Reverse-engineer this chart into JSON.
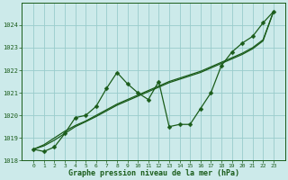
{
  "xlabel": "Graphe pression niveau de la mer (hPa)",
  "bg_color": "#cceaea",
  "grid_color": "#99cccc",
  "line_color": "#1a5c1a",
  "x": [
    0,
    1,
    2,
    3,
    4,
    5,
    6,
    7,
    8,
    9,
    10,
    11,
    12,
    13,
    14,
    15,
    16,
    17,
    18,
    19,
    20,
    21,
    22,
    23
  ],
  "y_main": [
    1018.5,
    1018.4,
    1018.6,
    1019.2,
    1019.9,
    1020.0,
    1020.4,
    1021.2,
    1021.9,
    1021.4,
    1021.0,
    1020.7,
    1021.5,
    1019.5,
    1019.6,
    1019.6,
    1020.3,
    1021.0,
    1022.2,
    1022.8,
    1023.2,
    1023.5,
    1024.1,
    1024.6
  ],
  "y_trend1": [
    1018.5,
    1018.7,
    1019.0,
    1019.3,
    1019.55,
    1019.75,
    1020.0,
    1020.25,
    1020.5,
    1020.7,
    1020.9,
    1021.1,
    1021.3,
    1021.5,
    1021.65,
    1021.8,
    1021.95,
    1022.15,
    1022.35,
    1022.55,
    1022.75,
    1023.0,
    1023.35,
    1024.6
  ],
  "y_trend2": [
    1018.5,
    1018.65,
    1018.9,
    1019.2,
    1019.5,
    1019.72,
    1019.95,
    1020.2,
    1020.45,
    1020.65,
    1020.85,
    1021.05,
    1021.25,
    1021.45,
    1021.6,
    1021.75,
    1021.9,
    1022.1,
    1022.3,
    1022.5,
    1022.7,
    1022.95,
    1023.3,
    1024.6
  ],
  "ylim": [
    1018.0,
    1025.0
  ],
  "yticks": [
    1018,
    1019,
    1020,
    1021,
    1022,
    1023,
    1024
  ],
  "xticks": [
    0,
    1,
    2,
    3,
    4,
    5,
    6,
    7,
    8,
    9,
    10,
    11,
    12,
    13,
    14,
    15,
    16,
    17,
    18,
    19,
    20,
    21,
    22,
    23
  ],
  "markersize": 2.5,
  "linewidth": 0.9
}
